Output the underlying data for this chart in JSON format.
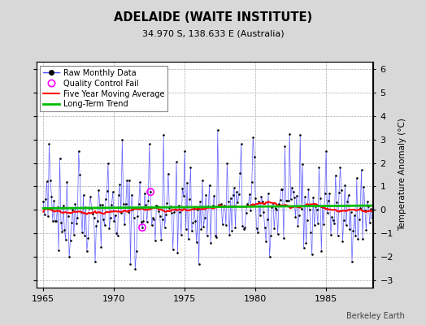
{
  "title": "ADELAIDE (WAITE INSTITUTE)",
  "subtitle": "34.970 S, 138.633 E (Australia)",
  "ylabel_right": "Temperature Anomaly (°C)",
  "attribution": "Berkeley Earth",
  "xlim": [
    1964.5,
    1988.3
  ],
  "ylim": [
    -3.3,
    6.3
  ],
  "yticks": [
    -3,
    -2,
    -1,
    0,
    1,
    2,
    3,
    4,
    5,
    6
  ],
  "xticks": [
    1965,
    1970,
    1975,
    1980,
    1985
  ],
  "bg_color": "#d8d8d8",
  "plot_bg_color": "#ffffff",
  "raw_line_color": "#4444ff",
  "raw_marker_color": "#000000",
  "qc_fail_color": "#ff00ff",
  "moving_avg_color": "#ff0000",
  "trend_color": "#00bb00",
  "seed": 42
}
